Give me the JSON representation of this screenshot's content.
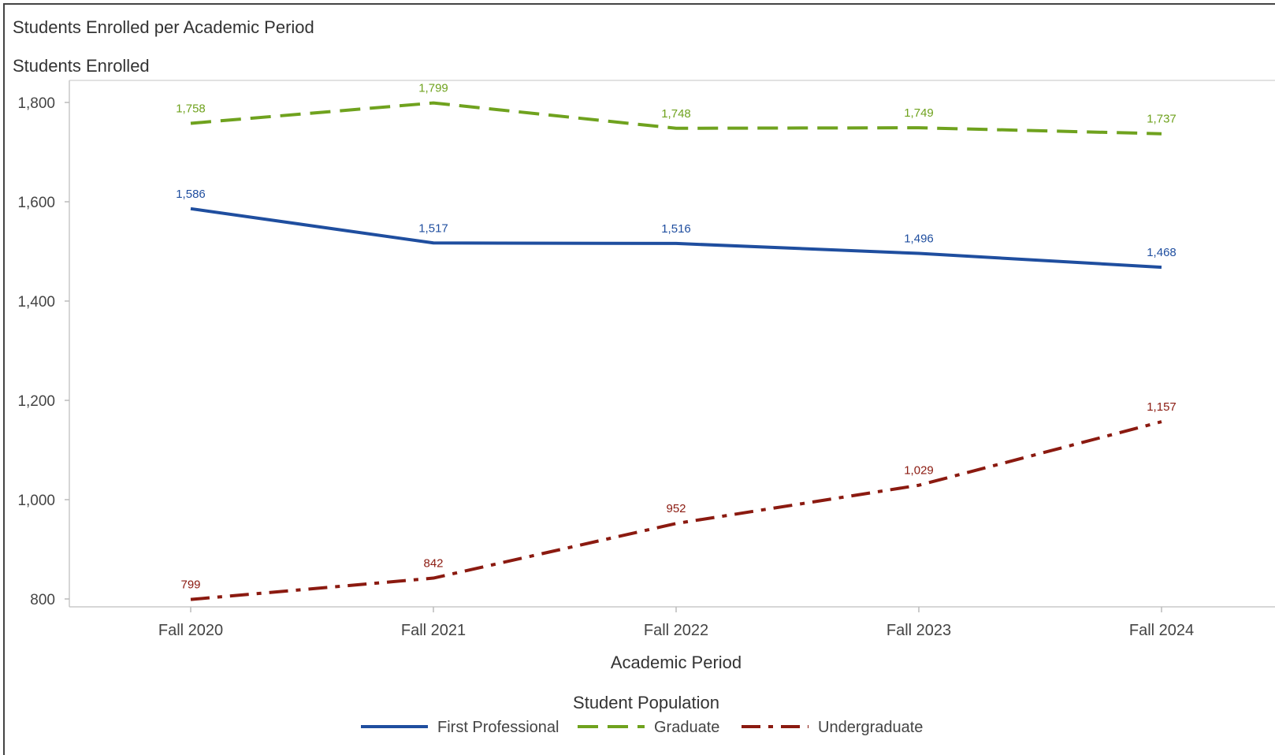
{
  "chart_data": {
    "type": "line",
    "title": "Students Enrolled per Academic Period",
    "ylabel": "Students Enrolled",
    "xlabel": "Academic Period",
    "categories": [
      "Fall 2020",
      "Fall 2021",
      "Fall 2022",
      "Fall 2023",
      "Fall 2024"
    ],
    "ylim": [
      800,
      1850
    ],
    "yticks": [
      800,
      1000,
      1200,
      1400,
      1600,
      1800
    ],
    "ytick_labels": [
      "800",
      "1,000",
      "1,200",
      "1,400",
      "1,600",
      "1,800"
    ],
    "legend_title": "Student Population",
    "legend_position": "bottom-center",
    "grid": false,
    "series": [
      {
        "name": "First Professional",
        "color": "#1f4e9f",
        "dash": "solid",
        "values": [
          1586,
          1517,
          1516,
          1496,
          1468
        ],
        "labels": [
          "1,586",
          "1,517",
          "1,516",
          "1,496",
          "1,468"
        ]
      },
      {
        "name": "Graduate",
        "color": "#6fa21e",
        "dash": "dash",
        "values": [
          1758,
          1799,
          1748,
          1749,
          1737
        ],
        "labels": [
          "1,758",
          "1,799",
          "1,748",
          "1,749",
          "1,737"
        ]
      },
      {
        "name": "Undergraduate",
        "color": "#8b1a10",
        "dash": "dashdot",
        "values": [
          799,
          842,
          952,
          1029,
          1157
        ],
        "labels": [
          "799",
          "842",
          "952",
          "1,029",
          "1,157"
        ]
      }
    ]
  }
}
